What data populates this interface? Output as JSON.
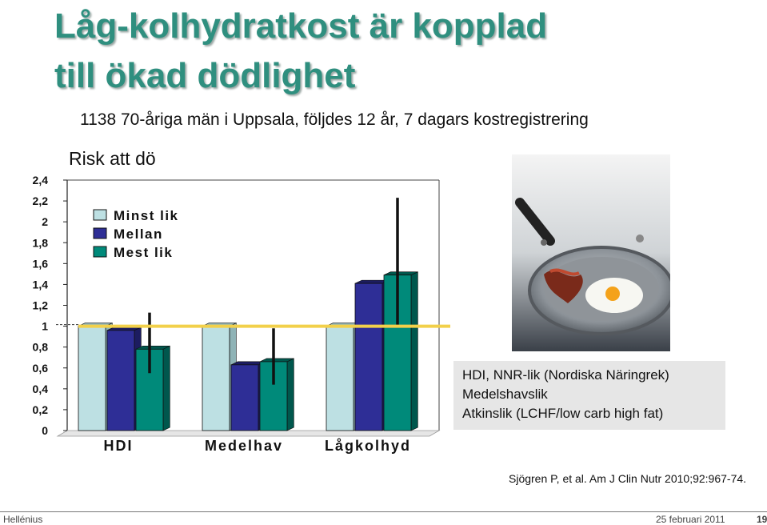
{
  "slide": {
    "title_line1": "Låg-kolhydratkost är kopplad",
    "title_line2": "till ökad dödlighet",
    "subtitle": "1138 70-åriga män i Uppsala, följdes 12 år, 7 dagars kostregistrering",
    "legend_notes": [
      "HDI, NNR-lik (Nordiska Näringrek)",
      "Medelshavslik",
      "Atkinslik (LCHF/low carb high fat)"
    ],
    "citation": "Sjögren P, et al. Am J Clin Nutr 2010;92:967-74.",
    "footer_left": "Hellénius",
    "footer_date": "25 februari 2011",
    "footer_page": "19"
  },
  "chart_data": {
    "type": "bar",
    "title": "Risk att dö",
    "xlabel": "",
    "ylabel": "",
    "ylim": [
      0,
      2.4
    ],
    "y_ticks": [
      "0",
      "0,2",
      "0,4",
      "0,6",
      "0,8",
      "1",
      "1,2",
      "1,4",
      "1,6",
      "1,8",
      "2",
      "2,2",
      "2,4"
    ],
    "categories": [
      "HDI",
      "Medelhav",
      "Lågkolhyd"
    ],
    "series": [
      {
        "name": "Minst lik",
        "values": [
          1.0,
          1.0,
          1.0
        ],
        "color": "#bde0e3"
      },
      {
        "name": "Mellan",
        "values": [
          0.96,
          0.63,
          1.41
        ],
        "color": "#2e2e96"
      },
      {
        "name": "Mest lik",
        "values": [
          0.78,
          0.66,
          1.49
        ],
        "color": "#008a7a"
      }
    ],
    "error_bars": [
      {
        "series": "Mellan",
        "category": "Lågkolhyd",
        "low": null,
        "high": null
      },
      {
        "series": "Mest lik",
        "category": "HDI",
        "low": 0.55,
        "high": 1.13
      },
      {
        "series": "Mest lik",
        "category": "Medelhav",
        "low": 0.44,
        "high": 0.98
      },
      {
        "series": "Mest lik",
        "category": "Lågkolhyd",
        "low": 0.99,
        "high": 2.23
      }
    ],
    "reference_line": 1.0,
    "reference_color": "#f2d04a",
    "grid": false,
    "legend_position": "top-left"
  }
}
